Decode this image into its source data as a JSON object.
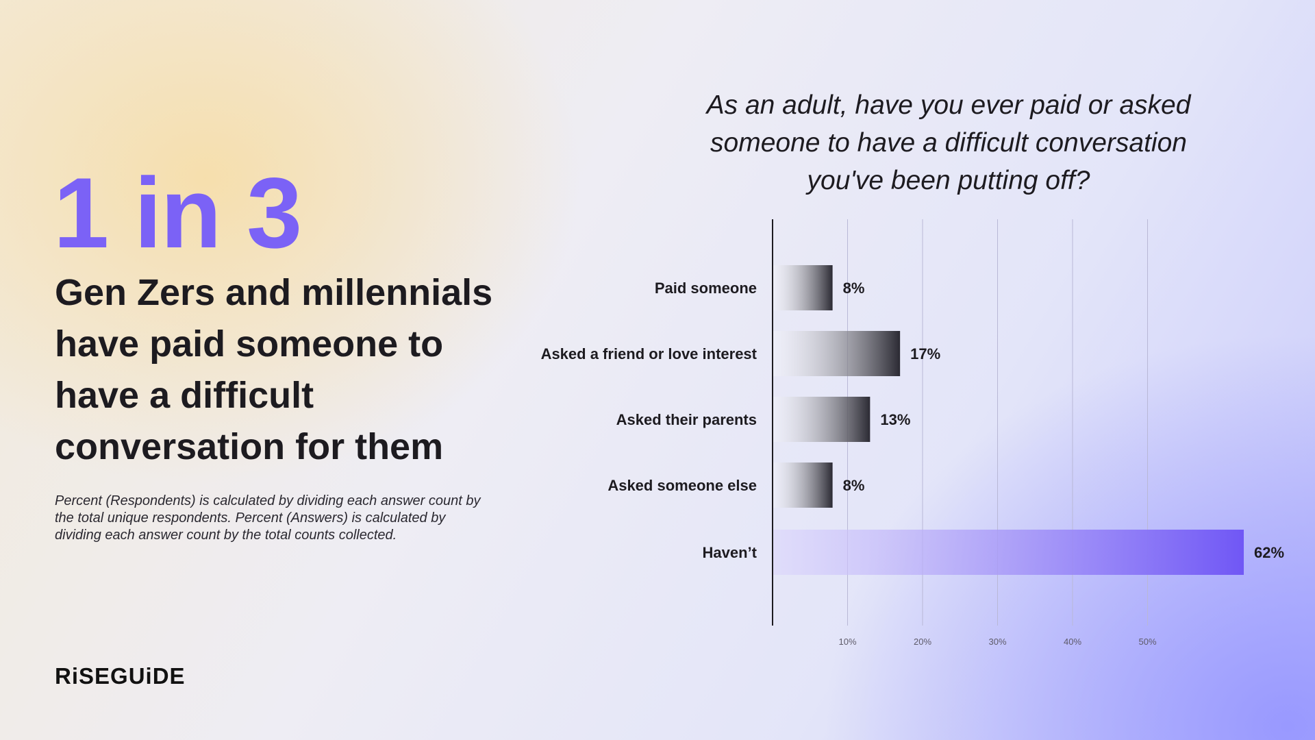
{
  "stat": "1 in 3",
  "headline": "Gen Zers and millennials have paid someone to have a difficult conversation for them",
  "footnote": "Percent (Respondents) is calculated by dividing each answer count by the total unique respondents. Percent (Answers) is calculated by dividing each answer count by the total counts collected.",
  "logo": "RiSEGUiDE",
  "colors": {
    "accent": "#7b62f6",
    "bar_dark": "#2b2a33",
    "highlight_bar": "#7057f5"
  },
  "chart_data": {
    "type": "bar",
    "orientation": "horizontal",
    "title": "As an adult, have you ever paid or asked someone to have a difficult conversation you've been putting off?",
    "categories": [
      "Paid someone",
      "Asked a friend or love interest",
      "Asked their parents",
      "Asked someone else",
      "Haven’t"
    ],
    "values": [
      8,
      17,
      13,
      8,
      62
    ],
    "value_labels": [
      "8%",
      "17%",
      "13%",
      "8%",
      "62%"
    ],
    "highlight_category": "Haven’t",
    "xticks": [
      10,
      20,
      30,
      40,
      50
    ],
    "xtick_labels": [
      "10%",
      "20%",
      "30%",
      "40%",
      "50%"
    ],
    "grid": true,
    "legend": "none"
  }
}
